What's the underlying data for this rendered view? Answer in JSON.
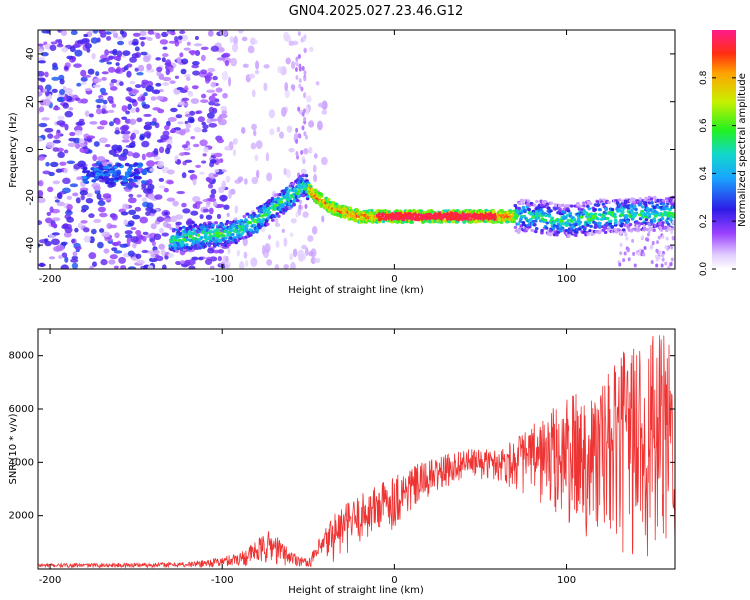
{
  "title": "GN04.2025.027.23.46.G12",
  "chart_data": [
    {
      "type": "heatmap",
      "xlabel": "Height of straight line (km)",
      "ylabel": "Frequency (Hz)",
      "xlim": [
        -207,
        163
      ],
      "ylim": [
        -50,
        50
      ],
      "xticks": [
        -200,
        -100,
        0,
        100
      ],
      "yticks": [
        -40,
        -20,
        0,
        20,
        40
      ],
      "colorbar": {
        "label": "Normalized spectral amplitude",
        "range": [
          0,
          1
        ],
        "ticks": [
          0.0,
          0.2,
          0.4,
          0.6,
          0.8
        ],
        "tick_labels": [
          "0.0",
          "0.2",
          "0.4",
          "0.6",
          "0.8"
        ]
      },
      "ridge": [
        {
          "x": -130,
          "y": -38
        },
        {
          "x": -110,
          "y": -36
        },
        {
          "x": -95,
          "y": -35
        },
        {
          "x": -80,
          "y": -30
        },
        {
          "x": -65,
          "y": -22
        },
        {
          "x": -52,
          "y": -15
        },
        {
          "x": -45,
          "y": -20
        },
        {
          "x": -35,
          "y": -25
        },
        {
          "x": -20,
          "y": -28
        },
        {
          "x": 0,
          "y": -28
        },
        {
          "x": 30,
          "y": -28
        },
        {
          "x": 60,
          "y": -28
        },
        {
          "x": 80,
          "y": -28
        },
        {
          "x": 100,
          "y": -30
        },
        {
          "x": 120,
          "y": -28
        },
        {
          "x": 140,
          "y": -27
        },
        {
          "x": 163,
          "y": -27
        }
      ],
      "early_cluster": {
        "x": [
          -180,
          -145
        ],
        "y": -10
      }
    },
    {
      "type": "line",
      "xlabel": "Height of straight line (km)",
      "ylabel": "SNR (10 * v/v)",
      "xlim": [
        -207,
        163
      ],
      "ylim": [
        0,
        9000
      ],
      "xticks": [
        -200,
        -100,
        0,
        100
      ],
      "yticks": [
        2000,
        4000,
        6000,
        8000
      ],
      "color": "#ee3333",
      "envelope": [
        {
          "x": -207,
          "lo": 50,
          "hi": 200
        },
        {
          "x": -160,
          "lo": 50,
          "hi": 220
        },
        {
          "x": -120,
          "lo": 50,
          "hi": 260
        },
        {
          "x": -100,
          "lo": 60,
          "hi": 450
        },
        {
          "x": -88,
          "lo": 100,
          "hi": 700
        },
        {
          "x": -72,
          "lo": 150,
          "hi": 1500
        },
        {
          "x": -60,
          "lo": 100,
          "hi": 700
        },
        {
          "x": -50,
          "lo": 80,
          "hi": 350
        },
        {
          "x": -35,
          "lo": 200,
          "hi": 2200
        },
        {
          "x": -20,
          "lo": 900,
          "hi": 2800
        },
        {
          "x": 0,
          "lo": 1500,
          "hi": 3600
        },
        {
          "x": 20,
          "lo": 2600,
          "hi": 4100
        },
        {
          "x": 40,
          "lo": 3400,
          "hi": 4500
        },
        {
          "x": 60,
          "lo": 3300,
          "hi": 4500
        },
        {
          "x": 80,
          "lo": 2600,
          "hi": 5400
        },
        {
          "x": 100,
          "lo": 1400,
          "hi": 6500
        },
        {
          "x": 120,
          "lo": 800,
          "hi": 7000
        },
        {
          "x": 140,
          "lo": 200,
          "hi": 8800
        },
        {
          "x": 163,
          "lo": 300,
          "hi": 8800
        }
      ]
    }
  ]
}
